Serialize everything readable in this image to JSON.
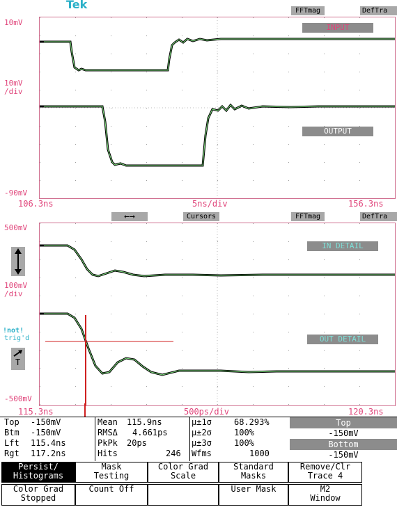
{
  "brand": "Tek",
  "top_panel": {
    "fft_label": "FFTmag",
    "def_label": "DefTra",
    "y_top": "10mV",
    "y_scale": "10mV",
    "y_scale_unit": "/div",
    "y_bottom": "-90mV",
    "x_left": "106.3ns",
    "x_center": "5ns/div",
    "x_right": "156.3ns",
    "label_input": "INPUT",
    "label_output": "OUTPUT"
  },
  "bottom_panel": {
    "arrows": "←→",
    "cursors_label": "Cursors",
    "fft_label": "FFTmag",
    "def_label": "DefTra",
    "y_top": "500mV",
    "y_scale": "100mV",
    "y_scale_unit": "/div",
    "y_bottom": "-500mV",
    "x_left": "115.3ns",
    "x_center": "500ps/div",
    "x_right": "120.3ns",
    "label_in_detail": "IN DETAIL",
    "label_out_detail": "OUT DETAIL",
    "not_trigd_1": "!not!",
    "not_trigd_2": "trig'd",
    "trigger_T": "T"
  },
  "measurements": {
    "col1": [
      {
        "k": "Top",
        "v": "-150mV"
      },
      {
        "k": "Btm",
        "v": "-150mV"
      },
      {
        "k": "Lft",
        "v": "115.4ns"
      },
      {
        "k": "Rgt",
        "v": "117.2ns"
      }
    ],
    "col2": [
      {
        "k": "Mean",
        "v": "115.9ns"
      },
      {
        "k": "RMSΔ",
        "v": "4.661ps"
      },
      {
        "k": "PkPk",
        "v": "20ps"
      },
      {
        "k": "Hits",
        "v": "246"
      }
    ],
    "col3": [
      {
        "k": "μ±1σ",
        "v": "68.293%"
      },
      {
        "k": "μ±2σ",
        "v": "100%"
      },
      {
        "k": "μ±3σ",
        "v": "100%"
      },
      {
        "k": "Wfms",
        "v": "1000"
      }
    ],
    "right_top_label": "Top",
    "right_top_value": "-150mV",
    "right_bottom_label": "Bottom",
    "right_bottom_value": "-150mV"
  },
  "menu": {
    "b1": [
      "Persist/",
      "Histograms"
    ],
    "b2": [
      "Mask",
      "Testing"
    ],
    "b3": [
      "Color Grad",
      "Scale"
    ],
    "b4": [
      "Standard",
      "Masks"
    ],
    "b5": [
      "Remove/Clr",
      "Trace 4"
    ],
    "s1": [
      "Color Grad",
      "Stopped"
    ],
    "s2": [
      "Count Off"
    ],
    "s4": [
      "User Mask"
    ],
    "s5": [
      "M2",
      "Window"
    ]
  }
}
